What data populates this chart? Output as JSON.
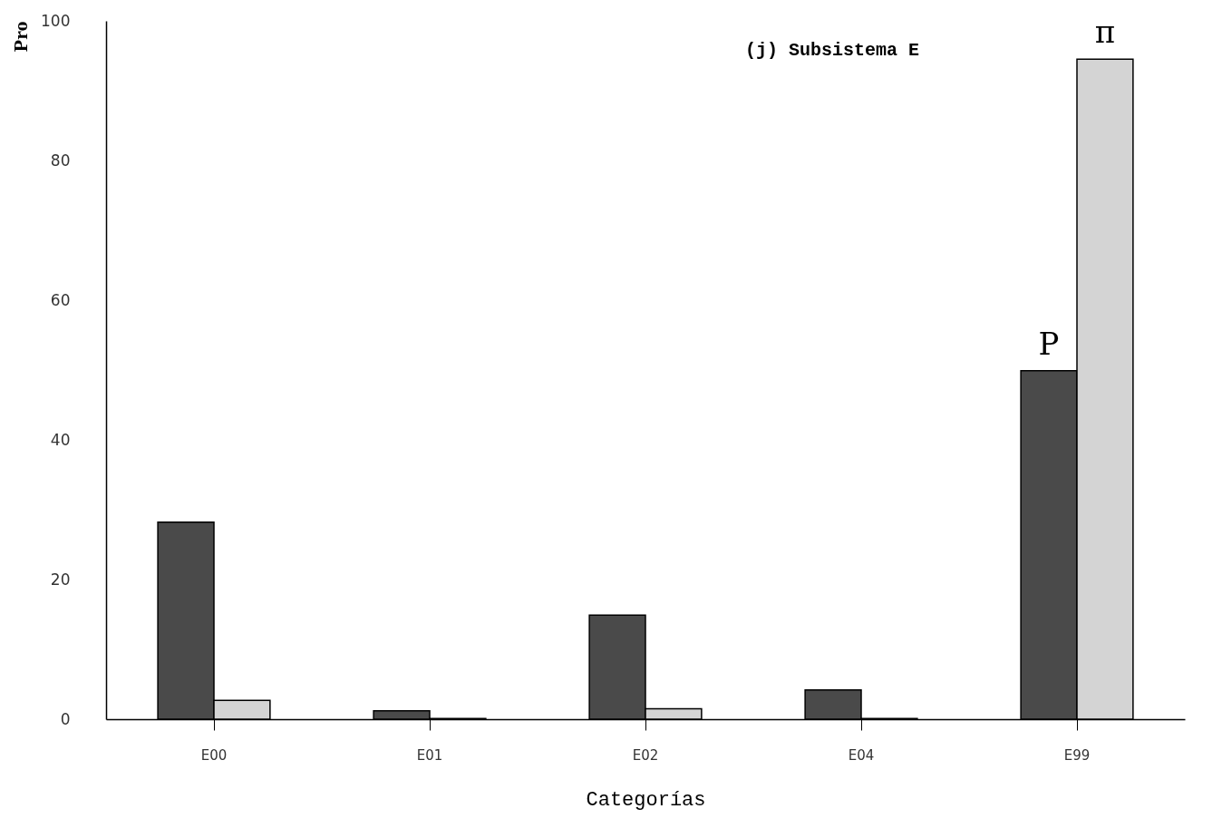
{
  "chart_data": {
    "type": "bar",
    "title": "(j) Subsistema E",
    "xlabel": "Categorías",
    "ylabel": "Pro",
    "categories": [
      "E00",
      "E01",
      "E02",
      "E04",
      "E99"
    ],
    "series": [
      {
        "name": "P",
        "color": "#4a4a4a",
        "values": [
          28.2,
          1.2,
          14.9,
          4.2,
          49.9
        ]
      },
      {
        "name": "π",
        "color": "#d4d4d4",
        "values": [
          2.7,
          0.1,
          1.5,
          0.1,
          94.5
        ]
      }
    ],
    "ylim": [
      0,
      100
    ],
    "yticks": [
      0,
      20,
      40,
      60,
      80,
      100
    ],
    "grid": false,
    "legend": false
  }
}
